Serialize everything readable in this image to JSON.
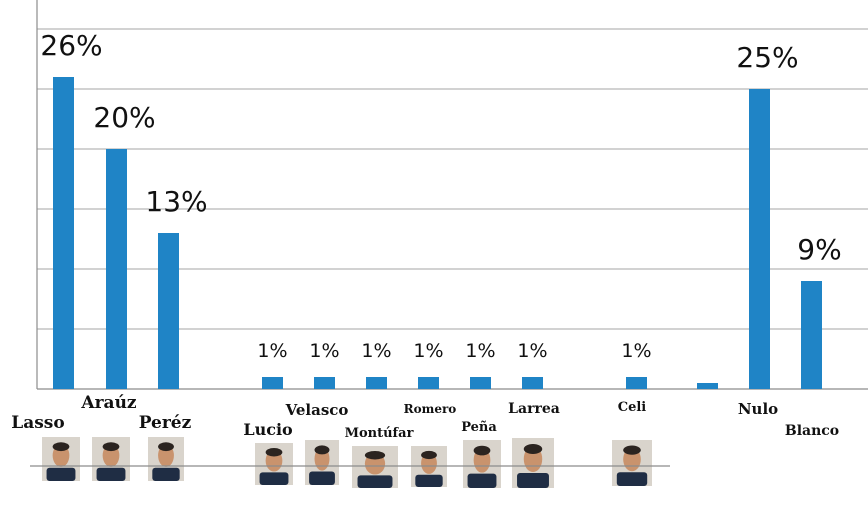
{
  "chart_data": {
    "type": "bar",
    "categories": [
      "Lasso",
      "Araúz",
      "Peréz",
      "Lucio",
      "Velasco",
      "Montúfar",
      "Romero",
      "Peña",
      "Larrea",
      "Celi",
      "",
      "Nulo",
      "Blanco"
    ],
    "values": [
      26,
      20,
      13,
      1,
      1,
      1,
      1,
      1,
      1,
      1,
      0.5,
      25,
      9
    ],
    "data_labels": [
      "26%",
      "20%",
      "13%",
      "1%",
      "1%",
      "1%",
      "1%",
      "1%",
      "1%",
      "1%",
      "",
      "25%",
      "9%"
    ],
    "title": "",
    "xlabel": "",
    "ylabel": "",
    "ylim": [
      0,
      30
    ],
    "grid": true,
    "bar_color": "#1f84c6",
    "candidate_photos": [
      "Lasso",
      "Araúz",
      "Peréz",
      "Lucio",
      "Velasco",
      "Montúfar",
      "Romero",
      "Peña",
      "Larrea",
      "Celi"
    ]
  }
}
